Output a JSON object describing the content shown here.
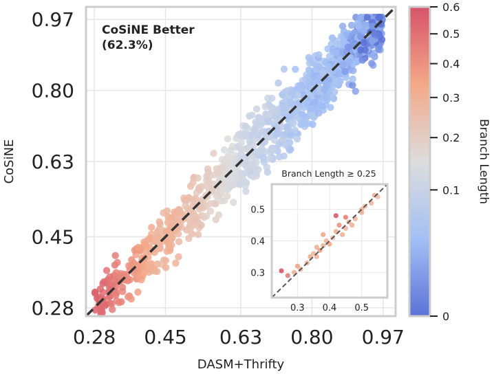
{
  "chart_data": {
    "type": "scatter",
    "xlabel": "DASM+Thrifty",
    "ylabel": "CoSiNE",
    "xlim": [
      0.26,
      1.0
    ],
    "ylim": [
      0.26,
      1.0
    ],
    "ticks": [
      "0.28",
      "0.45",
      "0.63",
      "0.80",
      "0.97"
    ],
    "tick_values": [
      0.28,
      0.45,
      0.63,
      0.8,
      0.97
    ],
    "grid": true,
    "diagonal": "y = x (dashed)",
    "annotation": {
      "line1": "CoSiNE Better",
      "line2": "(62.3%)"
    },
    "colorbar": {
      "label": "Branch Length",
      "colormap": "coolwarm",
      "ticks": [
        "0",
        "0.1",
        "0.2",
        "0.3",
        "0.4",
        "0.5",
        "0.6"
      ],
      "tick_values": [
        0,
        0.1,
        0.2,
        0.3,
        0.4,
        0.5,
        0.6
      ],
      "scale": "power (compressed near 0)"
    },
    "main_series": {
      "description": "Scatter of per-site values; points cluster along y=x; low values have long branch length (red), high values short (blue)",
      "clusters": [
        {
          "x_range": [
            0.28,
            0.45
          ],
          "spread": 0.03,
          "branch_length": [
            0.25,
            0.55
          ]
        },
        {
          "x_range": [
            0.45,
            0.63
          ],
          "spread": 0.035,
          "branch_length": [
            0.12,
            0.3
          ]
        },
        {
          "x_range": [
            0.63,
            0.8
          ],
          "spread": 0.04,
          "branch_length": [
            0.04,
            0.12
          ]
        },
        {
          "x_range": [
            0.8,
            0.97
          ],
          "spread": 0.035,
          "branch_length": [
            0.0,
            0.05
          ]
        }
      ]
    },
    "inset": {
      "title": "Branch Length ≥ 0.25",
      "xlim": [
        0.22,
        0.58
      ],
      "ylim": [
        0.22,
        0.58
      ],
      "xticks": [
        "0.3",
        "0.4",
        "0.5"
      ],
      "xtick_values": [
        0.3,
        0.4,
        0.5
      ],
      "yticks": [
        "0.3",
        "0.4",
        "0.5"
      ],
      "ytick_values": [
        0.3,
        0.4,
        0.5
      ],
      "points": [
        {
          "x": 0.25,
          "y": 0.305,
          "b": 0.6
        },
        {
          "x": 0.27,
          "y": 0.29,
          "b": 0.45
        },
        {
          "x": 0.29,
          "y": 0.3,
          "b": 0.3
        },
        {
          "x": 0.3,
          "y": 0.32,
          "b": 0.35
        },
        {
          "x": 0.31,
          "y": 0.31,
          "b": 0.28
        },
        {
          "x": 0.33,
          "y": 0.33,
          "b": 0.3
        },
        {
          "x": 0.34,
          "y": 0.35,
          "b": 0.32
        },
        {
          "x": 0.35,
          "y": 0.36,
          "b": 0.27
        },
        {
          "x": 0.36,
          "y": 0.38,
          "b": 0.3
        },
        {
          "x": 0.37,
          "y": 0.37,
          "b": 0.35
        },
        {
          "x": 0.38,
          "y": 0.385,
          "b": 0.28
        },
        {
          "x": 0.39,
          "y": 0.4,
          "b": 0.3
        },
        {
          "x": 0.4,
          "y": 0.39,
          "b": 0.33
        },
        {
          "x": 0.41,
          "y": 0.41,
          "b": 0.27
        },
        {
          "x": 0.42,
          "y": 0.43,
          "b": 0.3
        },
        {
          "x": 0.42,
          "y": 0.48,
          "b": 0.58
        },
        {
          "x": 0.43,
          "y": 0.45,
          "b": 0.4
        },
        {
          "x": 0.44,
          "y": 0.42,
          "b": 0.3
        },
        {
          "x": 0.45,
          "y": 0.44,
          "b": 0.28
        },
        {
          "x": 0.46,
          "y": 0.46,
          "b": 0.32
        },
        {
          "x": 0.47,
          "y": 0.45,
          "b": 0.3
        },
        {
          "x": 0.48,
          "y": 0.47,
          "b": 0.29
        },
        {
          "x": 0.5,
          "y": 0.49,
          "b": 0.3
        },
        {
          "x": 0.51,
          "y": 0.51,
          "b": 0.27
        },
        {
          "x": 0.53,
          "y": 0.52,
          "b": 0.28
        },
        {
          "x": 0.54,
          "y": 0.545,
          "b": 0.3
        },
        {
          "x": 0.55,
          "y": 0.54,
          "b": 0.26
        },
        {
          "x": 0.38,
          "y": 0.42,
          "b": 0.33
        },
        {
          "x": 0.45,
          "y": 0.475,
          "b": 0.45
        },
        {
          "x": 0.36,
          "y": 0.35,
          "b": 0.29
        },
        {
          "x": 0.5,
          "y": 0.5,
          "b": 0.3
        }
      ]
    }
  }
}
